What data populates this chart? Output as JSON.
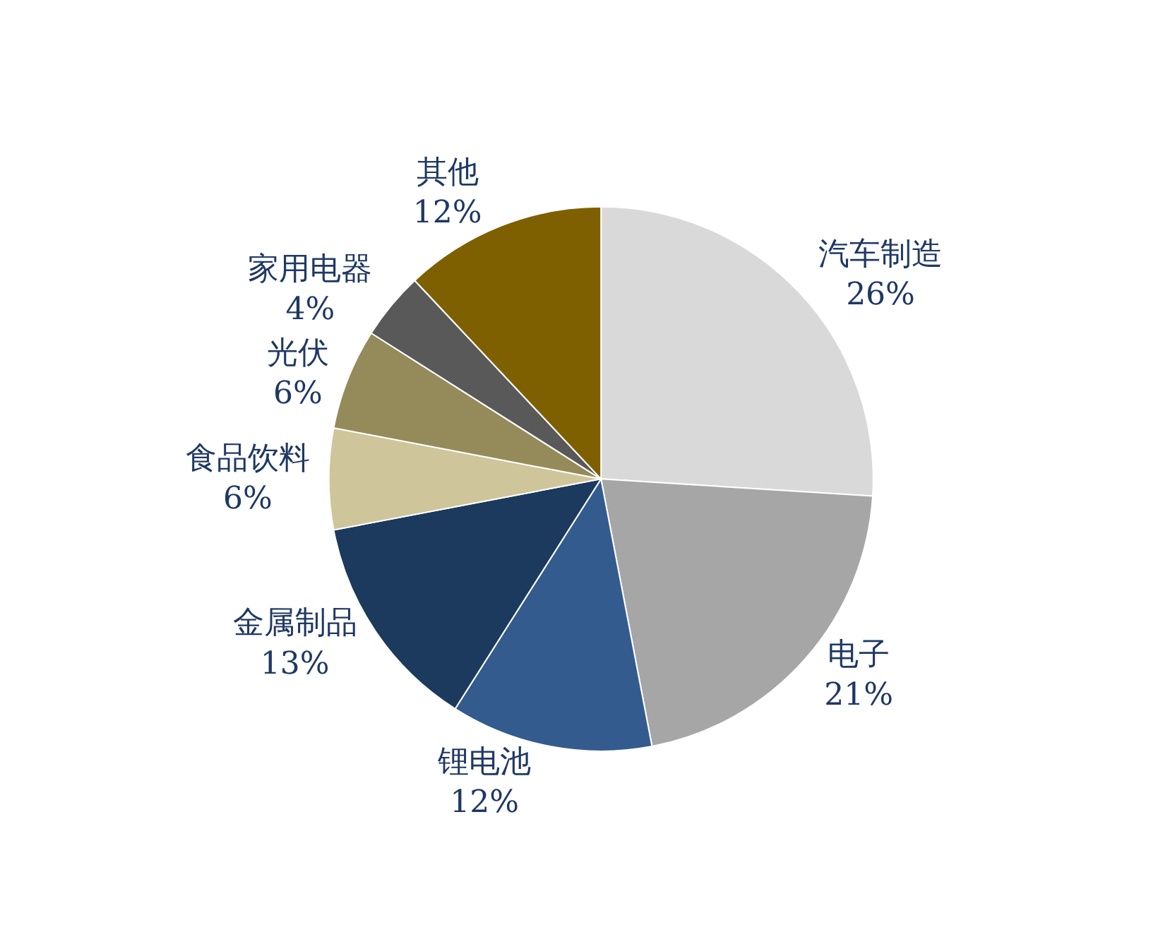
{
  "chart_data": {
    "type": "pie",
    "categories": [
      "汽车制造",
      "电子",
      "锂电池",
      "金属制品",
      "食品饮料",
      "光伏",
      "家用电器",
      "其他"
    ],
    "values": [
      26,
      21,
      12,
      13,
      6,
      6,
      4,
      12
    ],
    "value_labels": [
      "26%",
      "21%",
      "12%",
      "13%",
      "6%",
      "6%",
      "4%",
      "12%"
    ],
    "colors": [
      "#d9d9d9",
      "#a6a6a6",
      "#335b8e",
      "#1b3a5e",
      "#cfc59a",
      "#958b5a",
      "#595959",
      "#7f6000"
    ],
    "legend": false
  }
}
